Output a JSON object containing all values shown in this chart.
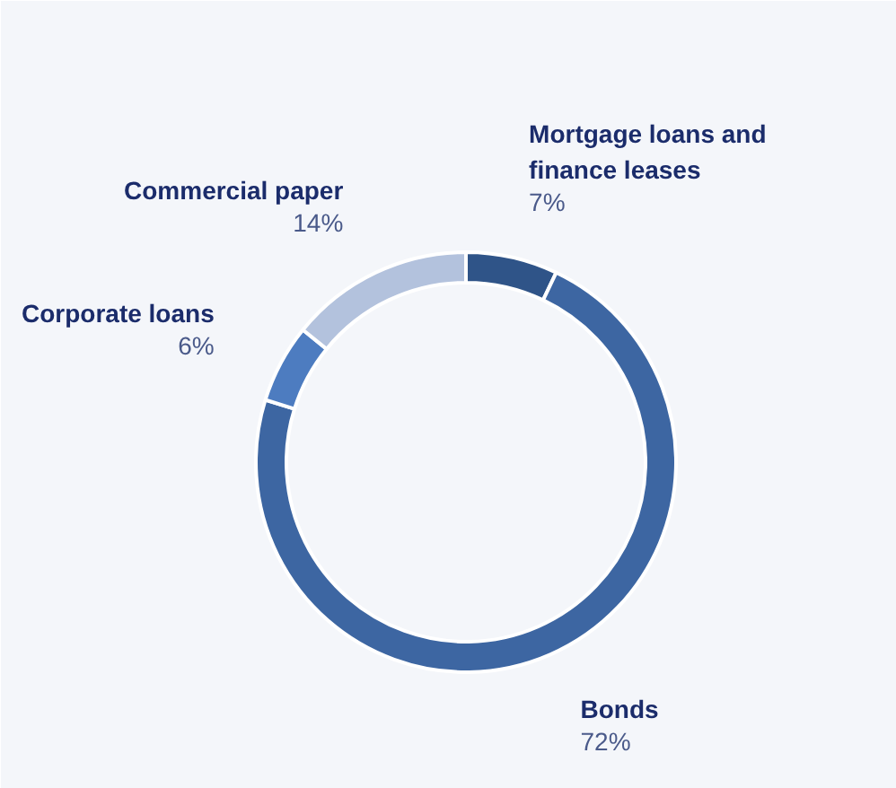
{
  "chart_data": {
    "type": "donut",
    "categories": [
      "Mortgage loans and finance leases",
      "Bonds",
      "Corporate loans",
      "Commercial paper"
    ],
    "values": [
      7,
      72,
      6,
      14
    ],
    "value_labels": [
      "7%",
      "72%",
      "6%",
      "14%"
    ],
    "colors": [
      "#2f5488",
      "#3d66a2",
      "#4d7cc0",
      "#b3c2dd"
    ]
  }
}
